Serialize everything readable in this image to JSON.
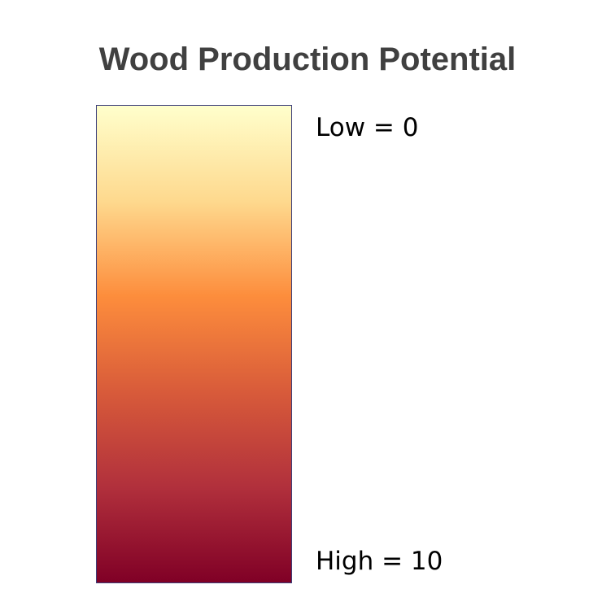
{
  "title": "Wood Production Potential",
  "legend": {
    "low_label": "Low = 0",
    "high_label": "High = 10",
    "low_value": 0,
    "high_value": 10,
    "colors": [
      "#ffffcc",
      "#fed98e",
      "#fd8d3c",
      "#d85b3a",
      "#b1303c",
      "#800026"
    ]
  }
}
